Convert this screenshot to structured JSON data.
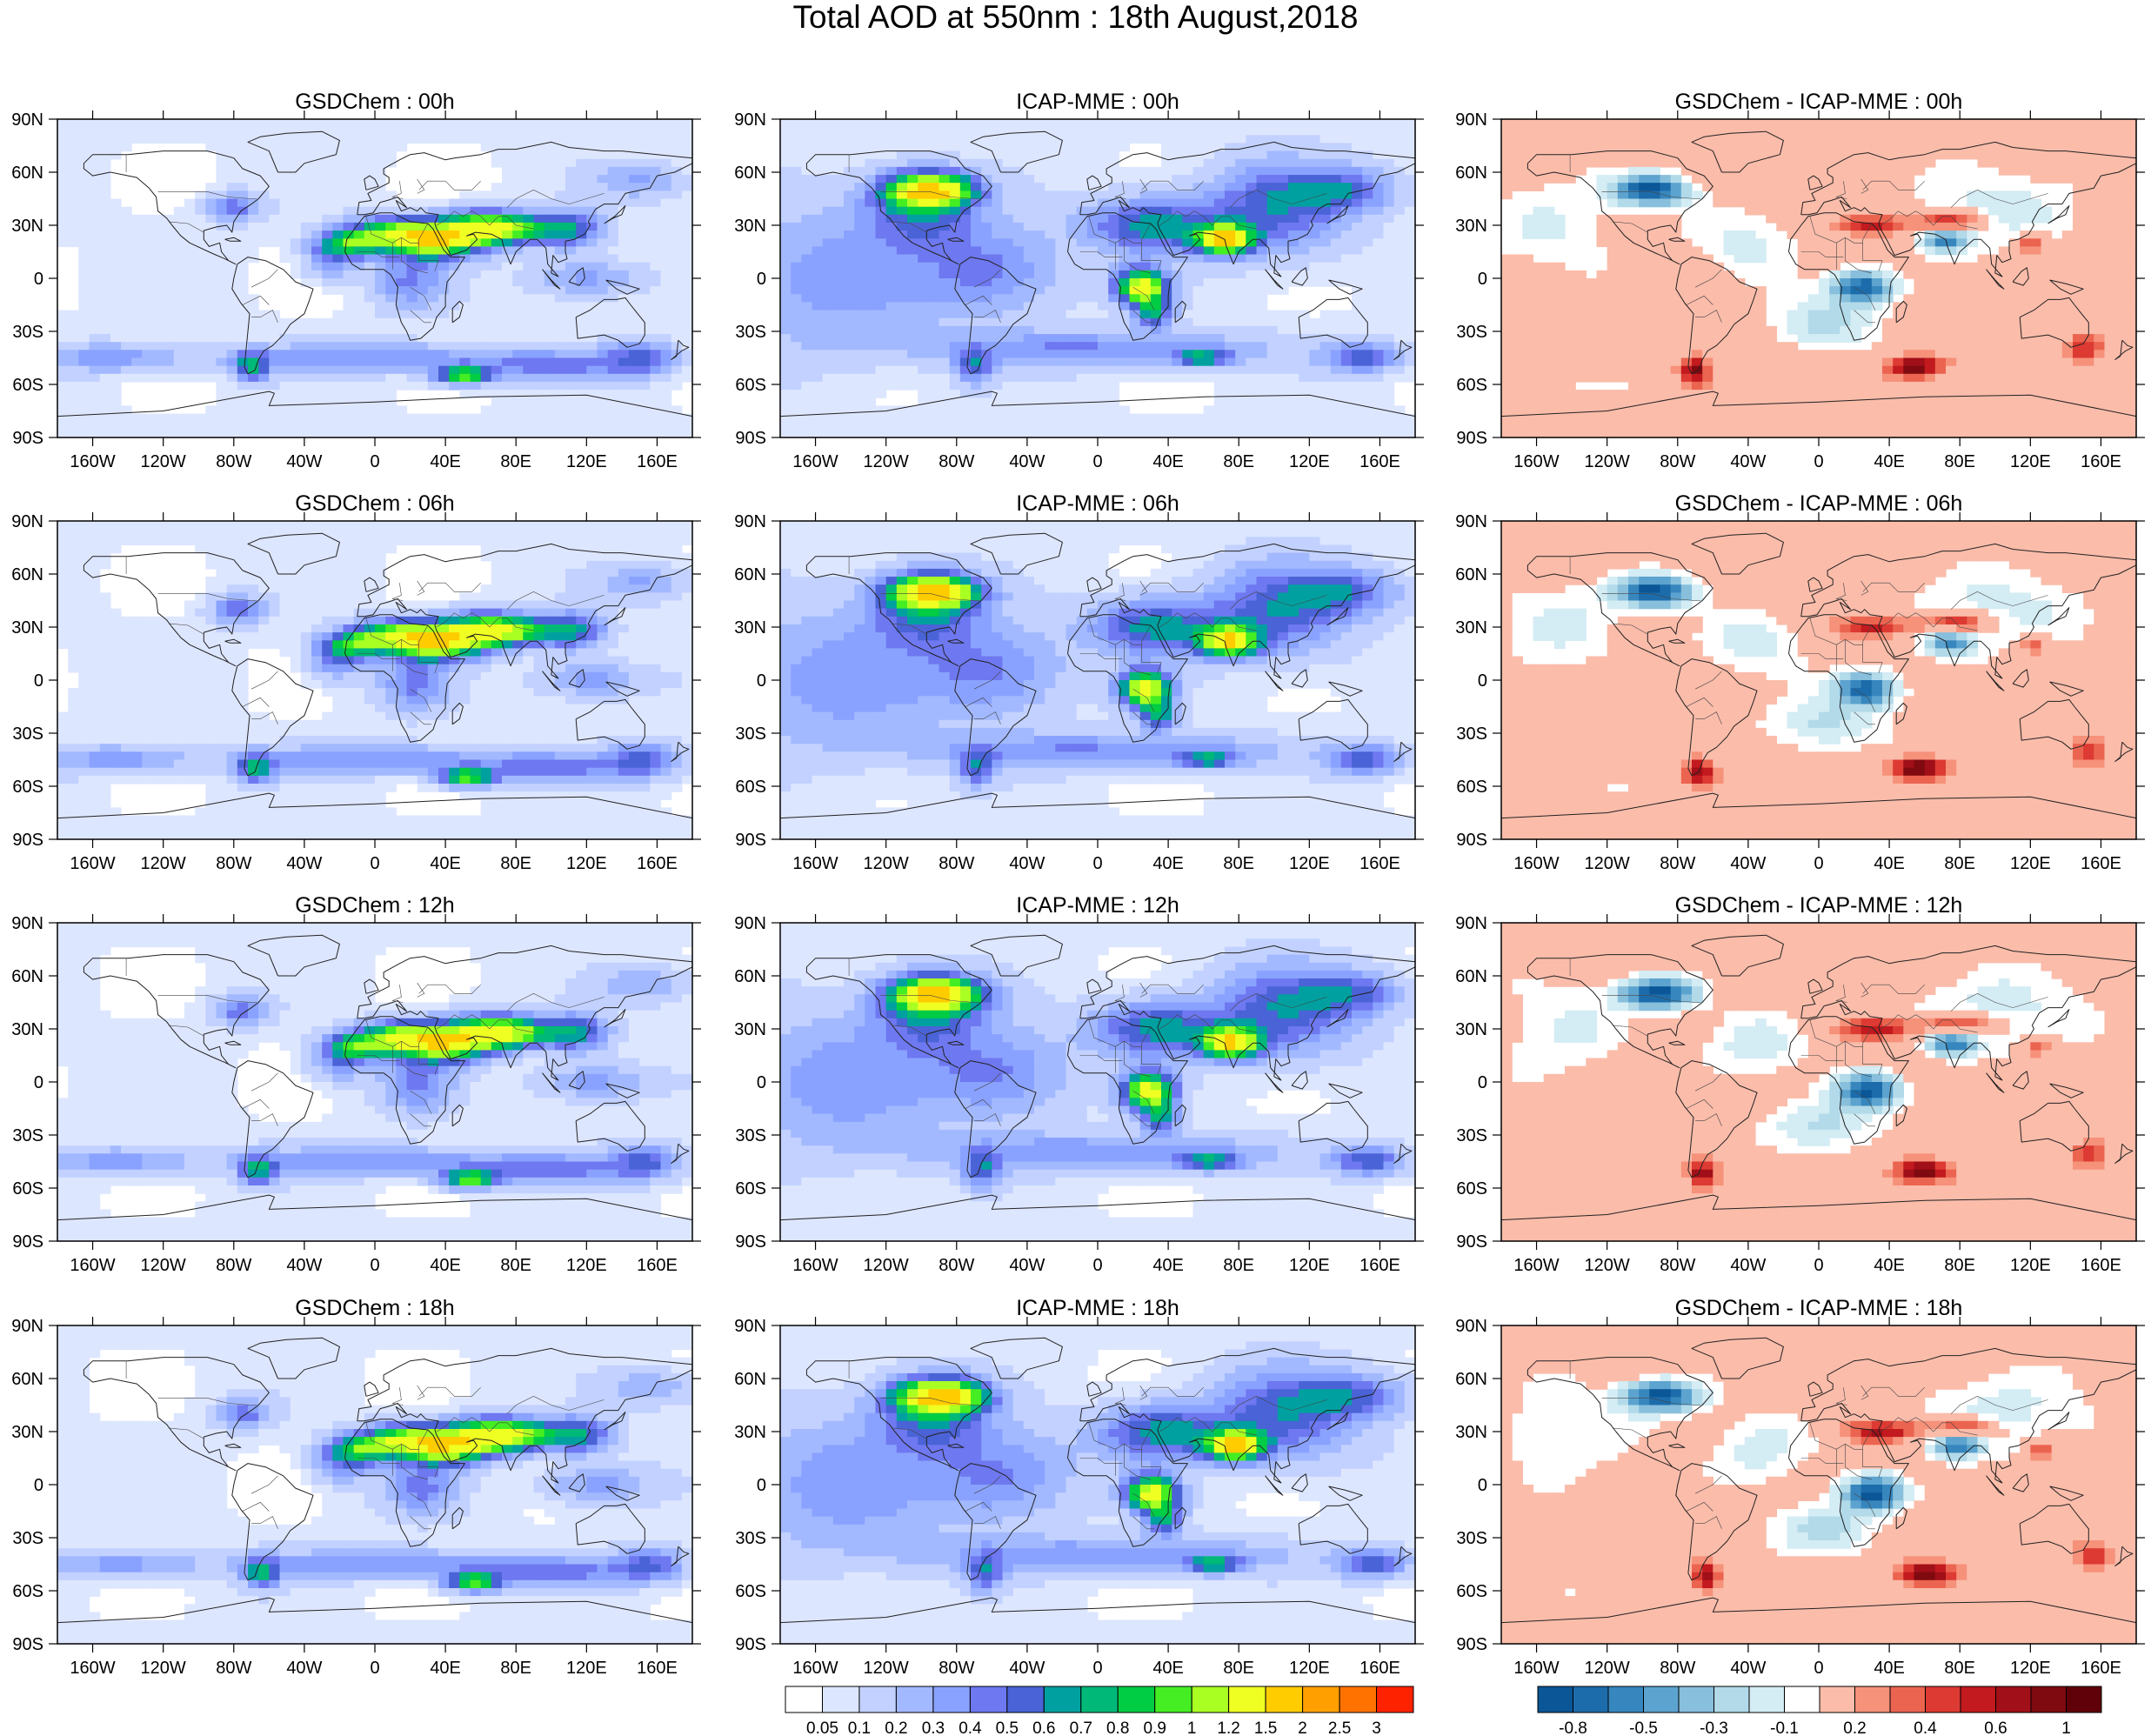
{
  "title": "Total AOD at 550nm : 18th August,2018",
  "lat_labels": [
    "90N",
    "60N",
    "30N",
    "0",
    "30S",
    "60S",
    "90S"
  ],
  "lon_labels": [
    "160W",
    "120W",
    "80W",
    "40W",
    "0",
    "40E",
    "80E",
    "120E",
    "160E"
  ],
  "panels": [
    {
      "title": "GSDChem : 00h",
      "field": "gsd",
      "hour": "00h"
    },
    {
      "title": "ICAP-MME : 00h",
      "field": "icap",
      "hour": "00h"
    },
    {
      "title": "GSDChem - ICAP-MME : 00h",
      "field": "diff",
      "hour": "00h"
    },
    {
      "title": "GSDChem : 06h",
      "field": "gsd",
      "hour": "06h"
    },
    {
      "title": "ICAP-MME : 06h",
      "field": "icap",
      "hour": "06h"
    },
    {
      "title": "GSDChem - ICAP-MME : 06h",
      "field": "diff",
      "hour": "06h"
    },
    {
      "title": "GSDChem : 12h",
      "field": "gsd",
      "hour": "12h"
    },
    {
      "title": "ICAP-MME : 12h",
      "field": "icap",
      "hour": "12h"
    },
    {
      "title": "GSDChem - ICAP-MME : 12h",
      "field": "diff",
      "hour": "12h"
    },
    {
      "title": "GSDChem : 18h",
      "field": "gsd",
      "hour": "18h"
    },
    {
      "title": "ICAP-MME : 18h",
      "field": "icap",
      "hour": "18h"
    },
    {
      "title": "GSDChem - ICAP-MME : 18h",
      "field": "diff",
      "hour": "18h"
    }
  ],
  "aod_colorbar": {
    "labels": [
      "0.05",
      "0.1",
      "0.2",
      "0.3",
      "0.4",
      "0.5",
      "0.6",
      "0.7",
      "0.8",
      "0.9",
      "1",
      "1.2",
      "1.5",
      "2",
      "2.5",
      "3"
    ],
    "colors": [
      "#ffffff",
      "#dde6ff",
      "#c2d1ff",
      "#a3b9ff",
      "#8aa2ff",
      "#6e78f0",
      "#4a63d6",
      "#00a0a0",
      "#00b878",
      "#00cc44",
      "#44ee22",
      "#aaff22",
      "#f0ff22",
      "#ffcc00",
      "#ffa000",
      "#ff7200",
      "#ff2200"
    ]
  },
  "diff_colorbar": {
    "labels": [
      "-0.8",
      "-0.5",
      "-0.3",
      "-0.1",
      "0.2",
      "0.4",
      "0.6",
      "1"
    ],
    "colors": [
      "#0a5696",
      "#1c6cab",
      "#3787be",
      "#5ca3cf",
      "#88bfdc",
      "#b2dae9",
      "#d4ecf4",
      "#ffffff",
      "#fbbcaa",
      "#f6917a",
      "#eb6450",
      "#dc3a32",
      "#c21a1e",
      "#a10f18",
      "#7f0a10",
      "#600008"
    ],
    "label_positions": [
      1,
      3,
      5,
      7,
      9,
      11,
      13,
      15
    ]
  }
}
